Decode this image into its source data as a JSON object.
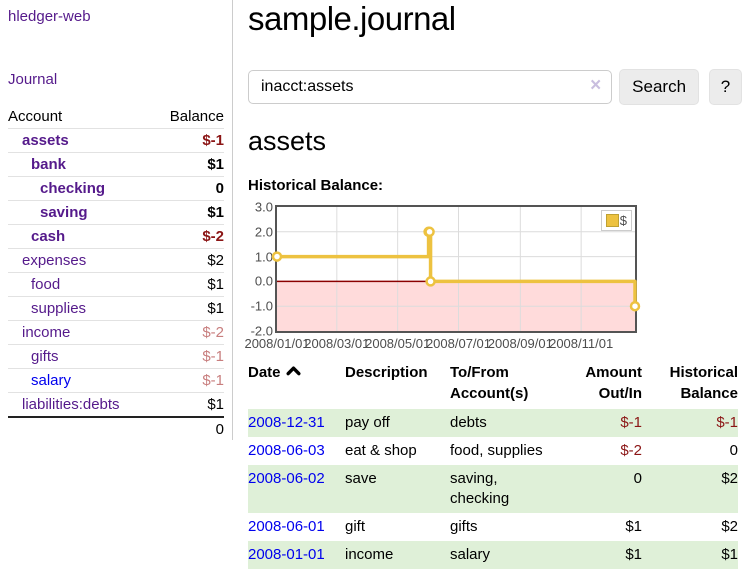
{
  "sidebar": {
    "brand": "hledger-web",
    "nav": {
      "journal": "Journal"
    },
    "table": {
      "headers": {
        "account": "Account",
        "balance": "Balance"
      },
      "rows": [
        {
          "name": "assets",
          "indent": 1,
          "bold": true,
          "link_color": "purple",
          "balance": "$-1",
          "balance_color": "negative"
        },
        {
          "name": "bank",
          "indent": 2,
          "bold": true,
          "link_color": "purple",
          "balance": "$1",
          "balance_color": "plain"
        },
        {
          "name": "checking",
          "indent": 3,
          "bold": true,
          "link_color": "purple",
          "balance": "0",
          "balance_color": "plain"
        },
        {
          "name": "saving",
          "indent": 3,
          "bold": true,
          "link_color": "purple",
          "balance": "$1",
          "balance_color": "plain"
        },
        {
          "name": "cash",
          "indent": 2,
          "bold": true,
          "link_color": "purple",
          "balance": "$-2",
          "balance_color": "negative"
        },
        {
          "name": "expenses",
          "indent": 1,
          "bold": false,
          "link_color": "purple",
          "balance": "$2",
          "balance_color": "plain"
        },
        {
          "name": "food",
          "indent": 2,
          "bold": false,
          "link_color": "purple",
          "balance": "$1",
          "balance_color": "plain"
        },
        {
          "name": "supplies",
          "indent": 2,
          "bold": false,
          "link_color": "purple",
          "balance": "$1",
          "balance_color": "plain"
        },
        {
          "name": "income",
          "indent": 1,
          "bold": false,
          "link_color": "purple",
          "balance": "$-2",
          "balance_color": "negative-muted"
        },
        {
          "name": "gifts",
          "indent": 2,
          "bold": false,
          "link_color": "purple",
          "balance": "$-1",
          "balance_color": "negative-muted"
        },
        {
          "name": "salary",
          "indent": 2,
          "bold": false,
          "link_color": "blue",
          "balance": "$-1",
          "balance_color": "negative-muted"
        },
        {
          "name": "liabilities:debts",
          "indent": 1,
          "bold": false,
          "link_color": "purple",
          "balance": "$1",
          "balance_color": "plain"
        }
      ],
      "total": "0"
    }
  },
  "main": {
    "title": "sample.journal",
    "search": {
      "value": "inacct:assets",
      "clear_label": "×",
      "button": "Search",
      "help": "?"
    },
    "heading": "assets",
    "chart_label": "Historical Balance:"
  },
  "chart_data": {
    "type": "line",
    "title": "Historical Balance:",
    "step": true,
    "series": [
      {
        "name": "$",
        "color": "#edc240",
        "points": [
          [
            "2008-01-01",
            1
          ],
          [
            "2008-06-01",
            2
          ],
          [
            "2008-06-02",
            2
          ],
          [
            "2008-06-03",
            0
          ],
          [
            "2008-12-31",
            -1
          ]
        ]
      }
    ],
    "x_domain": [
      "2008-01-01",
      "2008-12-25"
    ],
    "ylim": [
      -2,
      3
    ],
    "y_ticks": [
      {
        "v": 3,
        "label": "3.0"
      },
      {
        "v": 2,
        "label": "2.0"
      },
      {
        "v": 1,
        "label": "1.0"
      },
      {
        "v": 0,
        "label": "0.0"
      },
      {
        "v": -1,
        "label": "-1.0"
      },
      {
        "v": -2,
        "label": "-2.0"
      }
    ],
    "x_ticks": [
      {
        "date": "2008-01-01",
        "label": "2008/01/01"
      },
      {
        "date": "2008-03-01",
        "label": "2008/03/01"
      },
      {
        "date": "2008-05-01",
        "label": "2008/05/01"
      },
      {
        "date": "2008-07-01",
        "label": "2008/07/01"
      },
      {
        "date": "2008-09-01",
        "label": "2008/09/01"
      },
      {
        "date": "2008-11-01",
        "label": "2008/11/01"
      }
    ],
    "legend": {
      "label": "$",
      "position": "top-right"
    },
    "grid": true,
    "negative_fill": "#ffdbdb",
    "zero_line_color": "#8b0000",
    "grid_color": "#dcdcdc",
    "border_color": "#545454"
  },
  "register": {
    "columns": [
      "Date",
      "Description",
      "To/From\nAccount(s)",
      "Amount\nOut/In",
      "Historical\nBalance"
    ],
    "rows": [
      {
        "date": "2008-12-31",
        "description": "pay off",
        "accounts": "debts",
        "amount": "$-1",
        "amount_negative": true,
        "balance": "$-1",
        "balance_negative": true,
        "highlight": true
      },
      {
        "date": "2008-06-03",
        "description": "eat & shop",
        "accounts": "food, supplies",
        "amount": "$-2",
        "amount_negative": true,
        "balance": "0",
        "balance_negative": false,
        "highlight": false
      },
      {
        "date": "2008-06-02",
        "description": "save",
        "accounts": "saving,\nchecking",
        "amount": "0",
        "amount_negative": false,
        "balance": "$2",
        "balance_negative": false,
        "highlight": true
      },
      {
        "date": "2008-06-01",
        "description": "gift",
        "accounts": "gifts",
        "amount": "$1",
        "amount_negative": false,
        "balance": "$2",
        "balance_negative": false,
        "highlight": false
      },
      {
        "date": "2008-01-01",
        "description": "income",
        "accounts": "salary",
        "amount": "$1",
        "amount_negative": false,
        "balance": "$1",
        "balance_negative": false,
        "highlight": true
      }
    ]
  },
  "colors": {
    "link_purple": "#551a8b",
    "link_blue": "#0000ee",
    "negative": "#8b1515",
    "negative_muted": "#c87e7e",
    "row_highlight": "#dff0d8",
    "series_gold": "#edc240"
  }
}
